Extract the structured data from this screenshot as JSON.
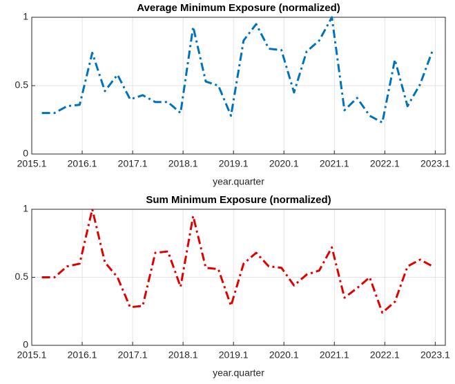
{
  "chart_data": [
    {
      "type": "line",
      "title": "Average Minimum Exposure (normalized)",
      "x_label": "year.quarter",
      "x": [
        2015.2,
        2015.45,
        2015.7,
        2015.95,
        2016.2,
        2016.45,
        2016.7,
        2016.95,
        2017.2,
        2017.45,
        2017.7,
        2017.95,
        2018.2,
        2018.45,
        2018.7,
        2018.95,
        2019.2,
        2019.45,
        2019.7,
        2019.95,
        2020.2,
        2020.45,
        2020.7,
        2020.95,
        2021.2,
        2021.45,
        2021.7,
        2021.95,
        2022.2,
        2022.45,
        2022.7,
        2022.95
      ],
      "series": [
        {
          "color": "#0072bd",
          "values": [
            0.3,
            0.3,
            0.35,
            0.36,
            0.74,
            0.46,
            0.58,
            0.4,
            0.43,
            0.38,
            0.38,
            0.3,
            0.93,
            0.53,
            0.5,
            0.28,
            0.83,
            0.95,
            0.77,
            0.76,
            0.45,
            0.75,
            0.83,
            1.0,
            0.32,
            0.41,
            0.28,
            0.23,
            0.69,
            0.35,
            0.51,
            0.76
          ]
        }
      ],
      "xlim": [
        2015,
        2023.2
      ],
      "xticks": [
        {
          "value": 2015,
          "label": "2015.1"
        },
        {
          "value": 2016,
          "label": "2016.1"
        },
        {
          "value": 2017,
          "label": "2017.1"
        },
        {
          "value": 2018,
          "label": "2018.1"
        },
        {
          "value": 2019,
          "label": "2019.1"
        },
        {
          "value": 2020,
          "label": "2020.1"
        },
        {
          "value": 2021,
          "label": "2021.1"
        },
        {
          "value": 2022,
          "label": "2022.1"
        },
        {
          "value": 2023,
          "label": "2023.1"
        }
      ],
      "ylim": [
        0,
        1
      ],
      "yticks": [
        0,
        0.5,
        1
      ],
      "grid": true
    },
    {
      "type": "line",
      "title": "Sum Minimum Exposure (normalized)",
      "x_label": "year.quarter",
      "x": [
        2015.2,
        2015.45,
        2015.7,
        2015.95,
        2016.2,
        2016.45,
        2016.7,
        2016.95,
        2017.2,
        2017.45,
        2017.7,
        2017.95,
        2018.2,
        2018.45,
        2018.7,
        2018.95,
        2019.2,
        2019.45,
        2019.7,
        2019.95,
        2020.2,
        2020.45,
        2020.7,
        2020.95,
        2021.2,
        2021.45,
        2021.7,
        2021.95,
        2022.2,
        2022.45,
        2022.7,
        2022.95
      ],
      "series": [
        {
          "color": "#e00000",
          "values": [
            0.5,
            0.5,
            0.58,
            0.6,
            1.0,
            0.61,
            0.5,
            0.28,
            0.29,
            0.68,
            0.69,
            0.43,
            0.95,
            0.57,
            0.56,
            0.29,
            0.6,
            0.68,
            0.58,
            0.57,
            0.44,
            0.52,
            0.55,
            0.72,
            0.35,
            0.42,
            0.5,
            0.24,
            0.32,
            0.58,
            0.63,
            0.58
          ]
        }
      ],
      "xlim": [
        2015,
        2023.2
      ],
      "xticks": [
        {
          "value": 2015,
          "label": "2015.1"
        },
        {
          "value": 2016,
          "label": "2016.1"
        },
        {
          "value": 2017,
          "label": "2017.1"
        },
        {
          "value": 2018,
          "label": "2018.1"
        },
        {
          "value": 2019,
          "label": "2019.1"
        },
        {
          "value": 2020,
          "label": "2020.1"
        },
        {
          "value": 2021,
          "label": "2021.1"
        },
        {
          "value": 2022,
          "label": "2022.1"
        },
        {
          "value": 2023,
          "label": "2023.1"
        }
      ],
      "ylim": [
        0,
        1
      ],
      "yticks": [
        0,
        0.5,
        1
      ],
      "grid": true
    }
  ]
}
